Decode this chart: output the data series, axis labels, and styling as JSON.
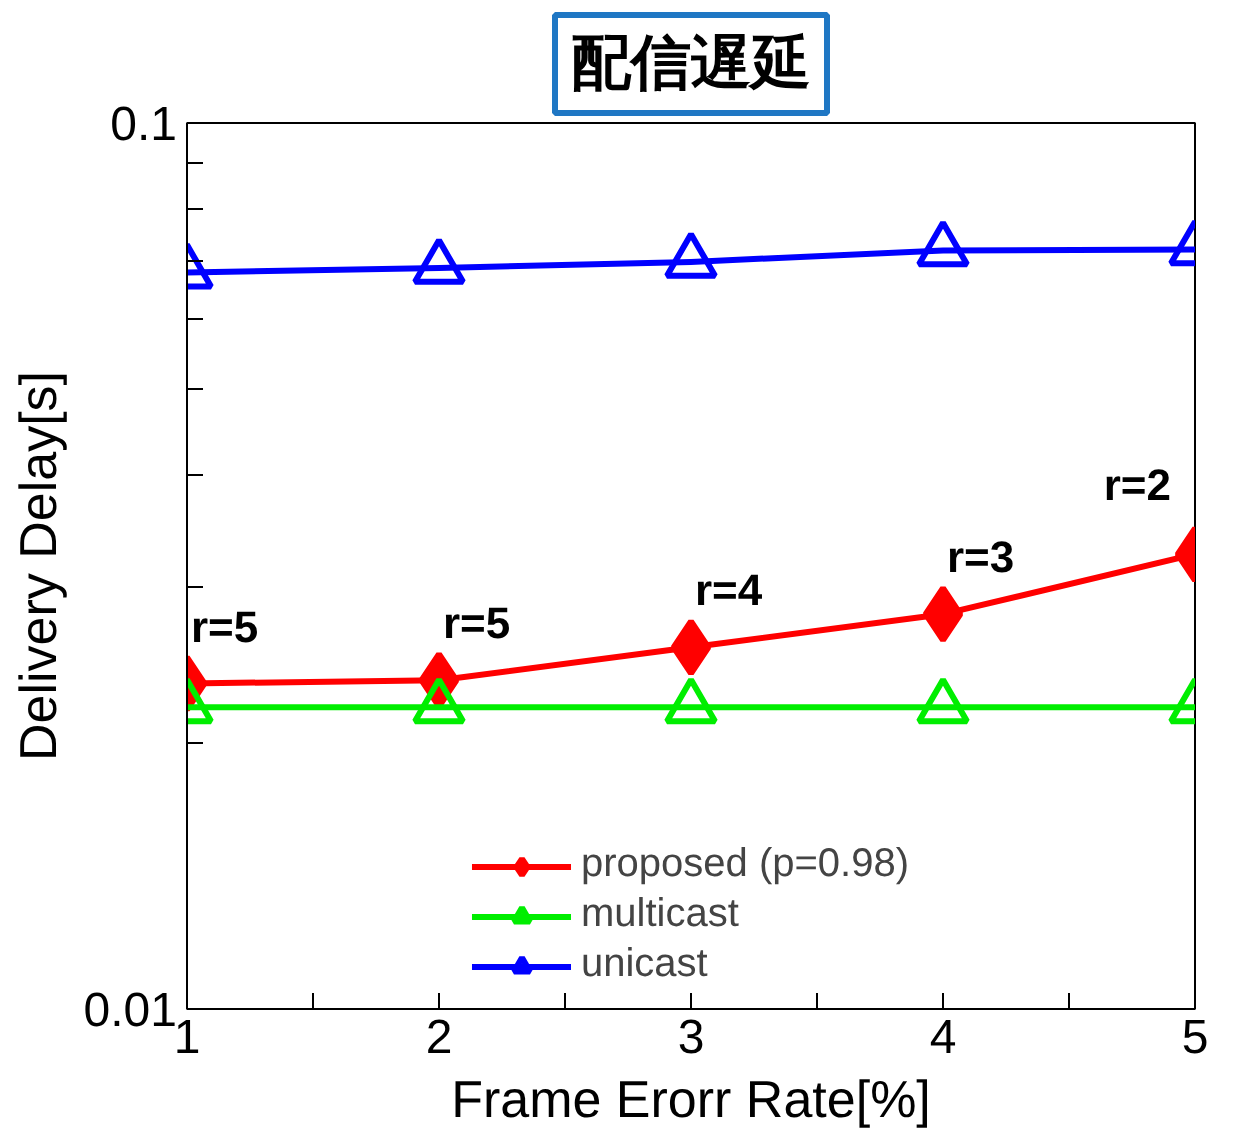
{
  "chart_data": {
    "type": "line",
    "title": "配信遅延",
    "xlabel": "Frame Erorr Rate[%]",
    "ylabel": "Delivery Delay[s]",
    "x": [
      1,
      2,
      3,
      4,
      5
    ],
    "series": [
      {
        "name": "proposed (p=0.98)",
        "color": "#ff0000",
        "marker": "diamond",
        "values": [
          0.0233,
          0.0235,
          0.0256,
          0.0279,
          0.0326
        ]
      },
      {
        "name": "multicast",
        "color": "#00ee00",
        "marker": "triangle",
        "values": [
          0.0219,
          0.0219,
          0.0219,
          0.0219,
          0.0219
        ]
      },
      {
        "name": "unicast",
        "color": "#0000ff",
        "marker": "triangle",
        "values": [
          0.0678,
          0.0686,
          0.0697,
          0.0718,
          0.072
        ]
      }
    ],
    "log": "y",
    "xlim": [
      1,
      5
    ],
    "ylim": [
      0.01,
      0.1
    ],
    "xticks": [
      1,
      {
        "value": 1.5,
        "label": null
      },
      2,
      {
        "value": 2.5,
        "label": null
      },
      3,
      {
        "value": 3.5,
        "label": null
      },
      4,
      {
        "value": 4.5,
        "label": null
      },
      5
    ],
    "yticks": [
      {
        "value": 0.01,
        "label": "0.01"
      },
      {
        "value": 0.02,
        "label": null
      },
      {
        "value": 0.03,
        "label": null
      },
      {
        "value": 0.04,
        "label": null
      },
      {
        "value": 0.05,
        "label": null
      },
      {
        "value": 0.06,
        "label": null
      },
      {
        "value": 0.07,
        "label": null
      },
      {
        "value": 0.08,
        "label": null
      },
      {
        "value": 0.09,
        "label": null
      },
      {
        "value": 0.1,
        "label": "0.1"
      }
    ],
    "grid": false,
    "legend": "bottom",
    "line_style": "solid",
    "annotations": [
      {
        "text": "r=5",
        "x": 1,
        "y": 0.0233
      },
      {
        "text": "r=5",
        "x": 2,
        "y": 0.0235
      },
      {
        "text": "r=4",
        "x": 3,
        "y": 0.0256
      },
      {
        "text": "r=3",
        "x": 4,
        "y": 0.0279
      },
      {
        "text": "r=2",
        "x": 5,
        "y": 0.0326
      }
    ]
  }
}
